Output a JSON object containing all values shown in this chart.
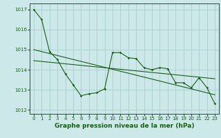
{
  "title": "Graphe pression niveau de la mer (hPa)",
  "background_color": "#cce8e8",
  "grid_color": "#aacccc",
  "line_color": "#1a5c1a",
  "xlim": [
    -0.5,
    23.5
  ],
  "ylim": [
    1011.8,
    1017.3
  ],
  "yticks": [
    1012,
    1013,
    1014,
    1015,
    1016,
    1017
  ],
  "xticks": [
    0,
    1,
    2,
    3,
    4,
    5,
    6,
    7,
    8,
    9,
    10,
    11,
    12,
    13,
    14,
    15,
    16,
    17,
    18,
    19,
    20,
    21,
    22,
    23
  ],
  "series1_x": [
    0,
    1,
    2,
    3,
    4,
    5,
    6,
    7,
    8,
    9,
    10,
    11,
    12,
    13,
    14,
    15,
    16,
    17,
    18,
    19,
    20,
    21,
    22,
    23
  ],
  "series1_y": [
    1017.0,
    1016.5,
    1014.9,
    1014.5,
    1013.8,
    1013.25,
    1012.7,
    1012.8,
    1012.85,
    1013.05,
    1014.85,
    1014.85,
    1014.6,
    1014.55,
    1014.1,
    1014.0,
    1014.1,
    1014.05,
    1013.35,
    1013.35,
    1013.1,
    1013.6,
    1013.1,
    1012.3
  ],
  "trend1_x": [
    0,
    23
  ],
  "trend1_y": [
    1015.0,
    1012.75
  ],
  "trend2_x": [
    0,
    23
  ],
  "trend2_y": [
    1014.45,
    1013.55
  ],
  "ylabel_fontsize": 5.5,
  "xlabel_fontsize": 6.5,
  "tick_fontsize": 5
}
